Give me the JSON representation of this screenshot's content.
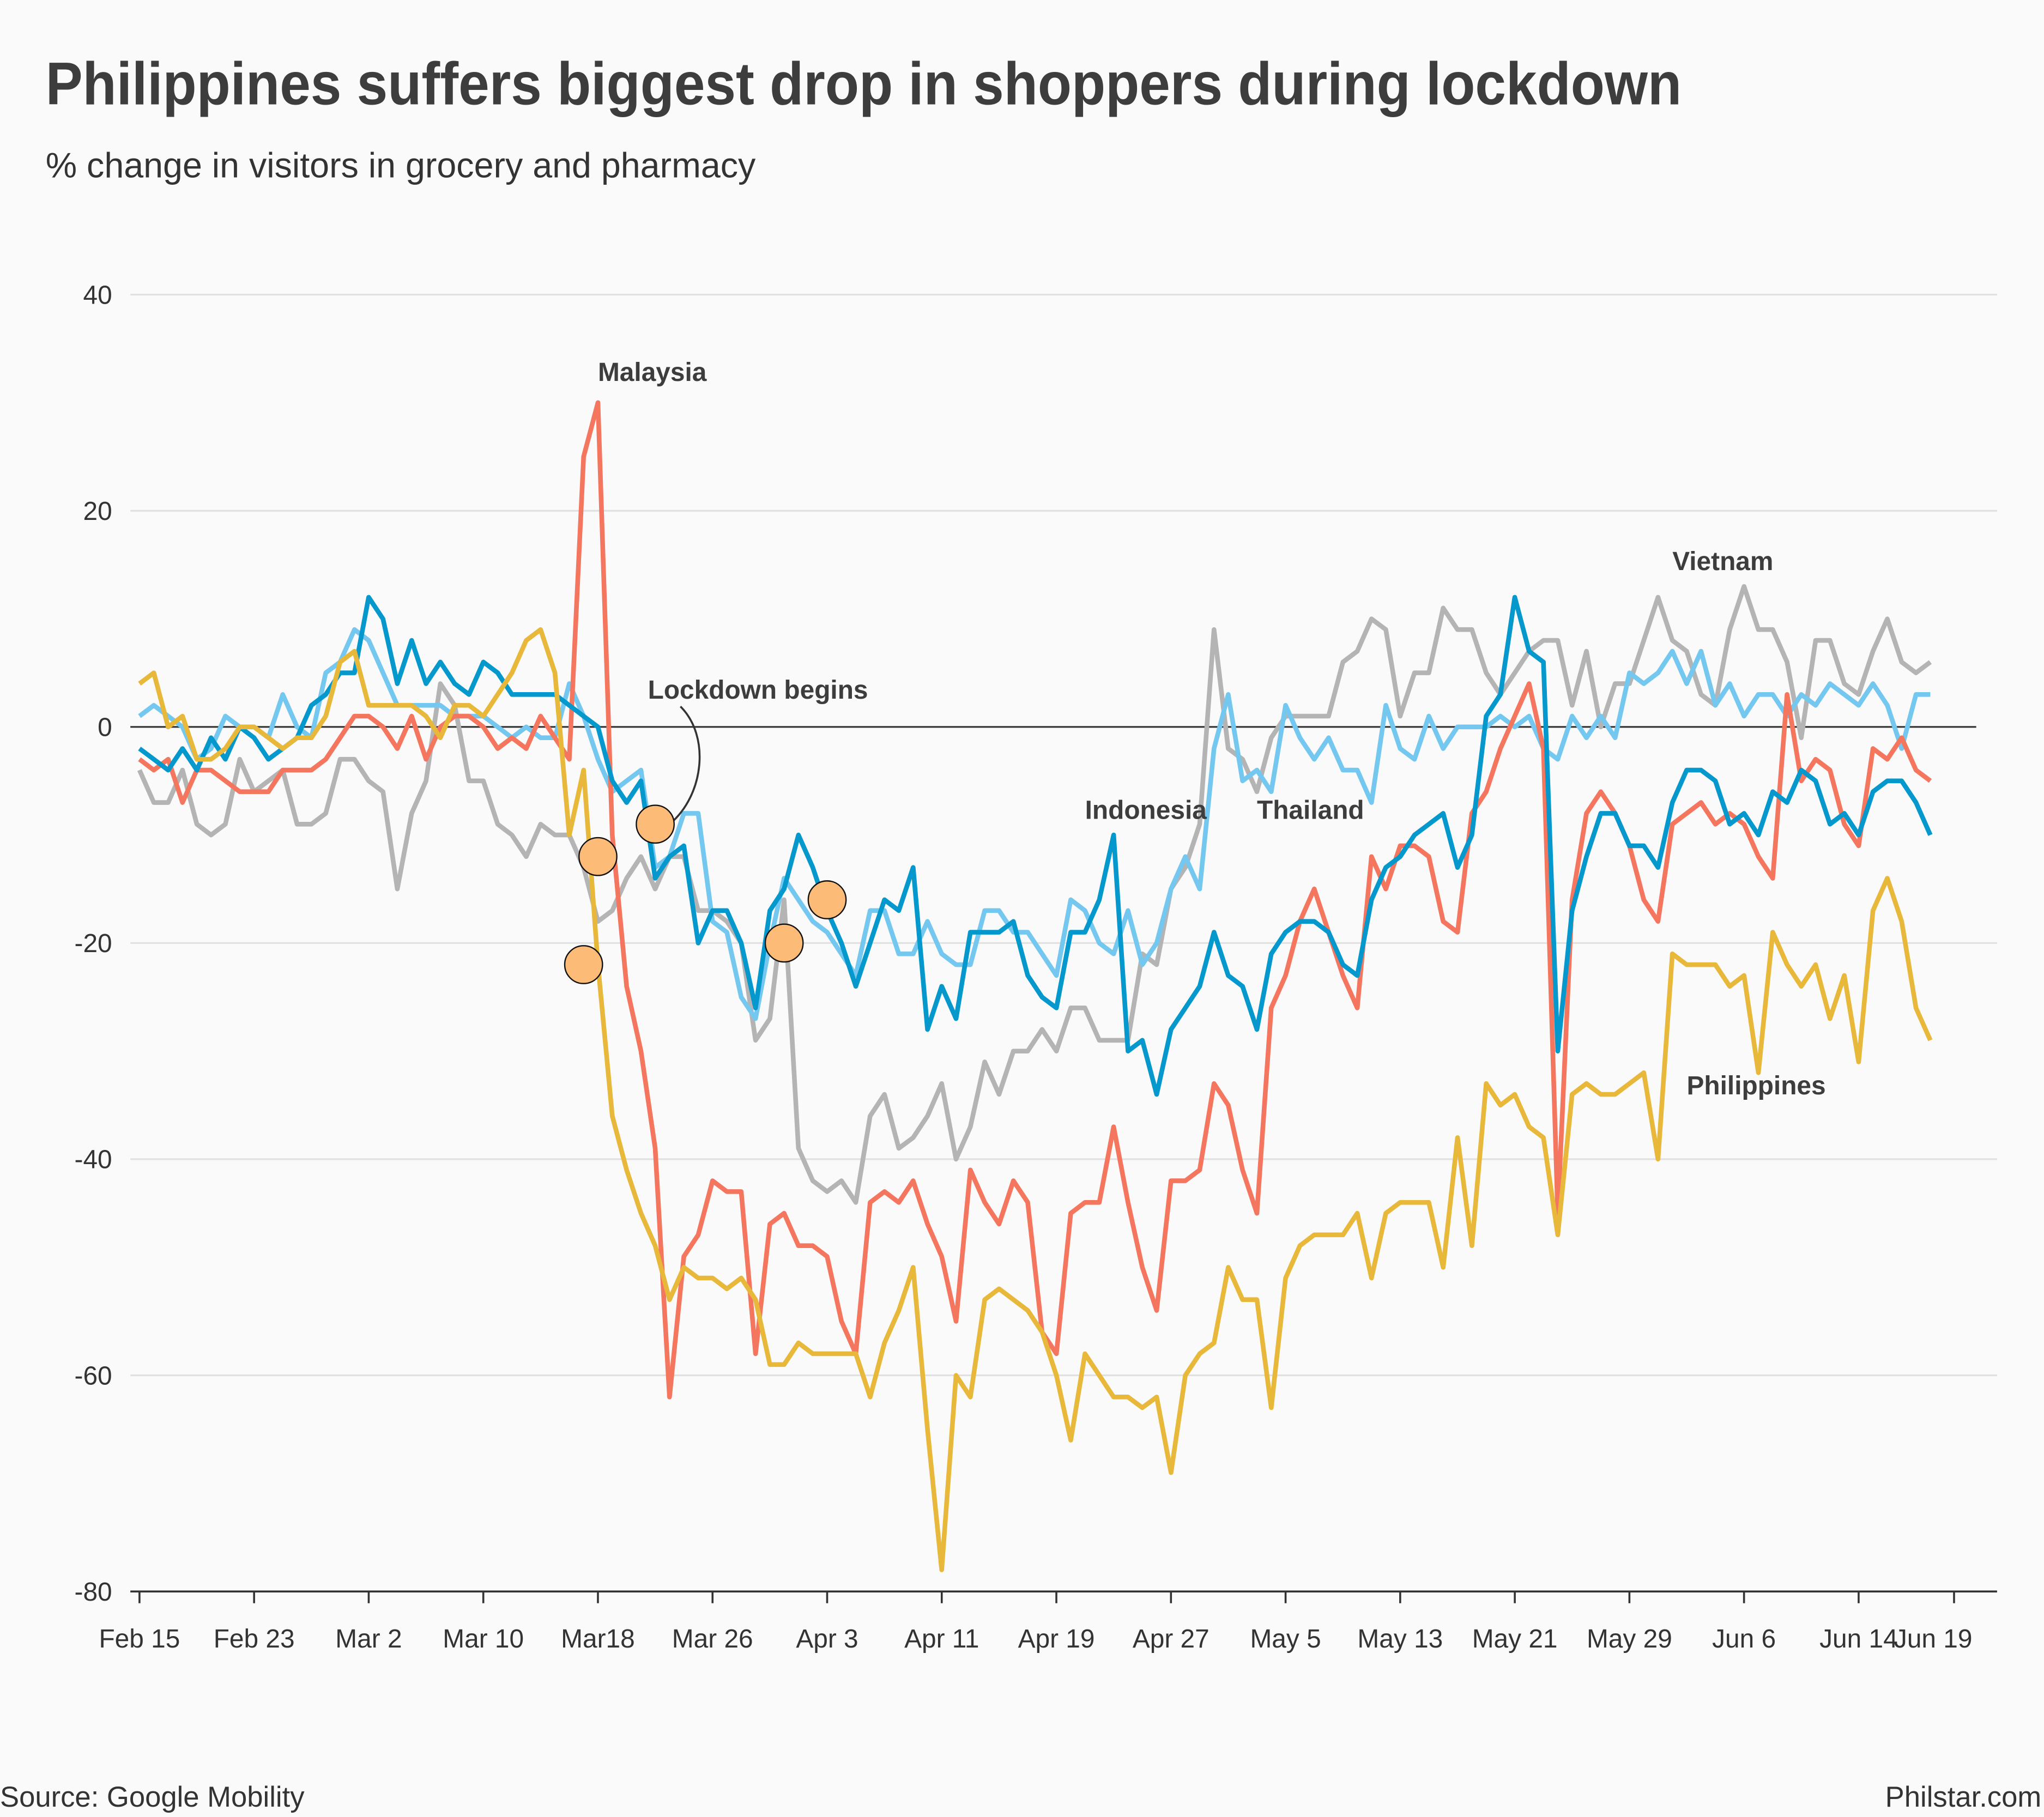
{
  "title": "Philippines suffers biggest drop in shoppers during lockdown",
  "subtitle": "% change in visitors in grocery and pharmacy",
  "source": "Source: Google Mobility",
  "credit": "Philstar.com",
  "chart_data": {
    "type": "line",
    "ylim": [
      -80,
      40
    ],
    "yticks": [
      40,
      20,
      0,
      -20,
      -40,
      -60,
      -80
    ],
    "grid": true,
    "xticks": [
      {
        "label": "Feb 15",
        "date": "Feb 15"
      },
      {
        "label": "Feb 23",
        "date": "Feb 23"
      },
      {
        "label": "Mar 2",
        "date": "Mar 2"
      },
      {
        "label": "Mar 10",
        "date": "Mar 10"
      },
      {
        "label": "Mar18",
        "date": "Mar 18"
      },
      {
        "label": "Mar 26",
        "date": "Mar 26"
      },
      {
        "label": "Apr 3",
        "date": "Apr 3"
      },
      {
        "label": "Apr 11",
        "date": "Apr 11"
      },
      {
        "label": "Apr 19",
        "date": "Apr 19"
      },
      {
        "label": "Apr 27",
        "date": "Apr 27"
      },
      {
        "label": "May 5",
        "date": "May 5"
      },
      {
        "label": "May 13",
        "date": "May 13"
      },
      {
        "label": "May 21",
        "date": "May 21"
      },
      {
        "label": "May 29",
        "date": "May 29"
      },
      {
        "label": "Jun 6",
        "date": "Jun 6"
      },
      {
        "label": "Jun 14",
        "date": "Jun 14"
      },
      {
        "label": "Jun 19",
        "date": "Jun 19"
      }
    ],
    "x": [
      "Feb 15",
      "Feb 16",
      "Feb 17",
      "Feb 18",
      "Feb 19",
      "Feb 20",
      "Feb 21",
      "Feb 22",
      "Feb 23",
      "Feb 24",
      "Feb 25",
      "Feb 26",
      "Feb 27",
      "Feb 28",
      "Feb 29",
      "Mar 1",
      "Mar 2",
      "Mar 3",
      "Mar 4",
      "Mar 5",
      "Mar 6",
      "Mar 7",
      "Mar 8",
      "Mar 9",
      "Mar 10",
      "Mar 11",
      "Mar 12",
      "Mar 13",
      "Mar 14",
      "Mar 15",
      "Mar 16",
      "Mar 17",
      "Mar 18",
      "Mar 19",
      "Mar 20",
      "Mar 21",
      "Mar 22",
      "Mar 23",
      "Mar 24",
      "Mar 25",
      "Mar 26",
      "Mar 27",
      "Mar 28",
      "Mar 29",
      "Mar 30",
      "Mar 31",
      "Apr 1",
      "Apr 2",
      "Apr 3",
      "Apr 4",
      "Apr 5",
      "Apr 6",
      "Apr 7",
      "Apr 8",
      "Apr 9",
      "Apr 10",
      "Apr 11",
      "Apr 12",
      "Apr 13",
      "Apr 14",
      "Apr 15",
      "Apr 16",
      "Apr 17",
      "Apr 18",
      "Apr 19",
      "Apr 20",
      "Apr 21",
      "Apr 22",
      "Apr 23",
      "Apr 24",
      "Apr 25",
      "Apr 26",
      "Apr 27",
      "Apr 28",
      "Apr 29",
      "Apr 30",
      "May 1",
      "May 2",
      "May 3",
      "May 4",
      "May 5",
      "May 6",
      "May 7",
      "May 8",
      "May 9",
      "May 10",
      "May 11",
      "May 12",
      "May 13",
      "May 14",
      "May 15",
      "May 16",
      "May 17",
      "May 18",
      "May 19",
      "May 20",
      "May 21",
      "May 22",
      "May 23",
      "May 24",
      "May 25",
      "May 26",
      "May 27",
      "May 28",
      "May 29",
      "May 30",
      "May 31",
      "Jun 1",
      "Jun 2",
      "Jun 3",
      "Jun 4",
      "Jun 5",
      "Jun 6",
      "Jun 7",
      "Jun 8",
      "Jun 9",
      "Jun 10",
      "Jun 11",
      "Jun 12",
      "Jun 13",
      "Jun 14",
      "Jun 15",
      "Jun 16",
      "Jun 17",
      "Jun 18",
      "Jun 19"
    ],
    "series": [
      {
        "name": "Vietnam",
        "color": "#b4b4b4",
        "label_date": "Jun 1",
        "label_value": 14.5,
        "values": [
          -4,
          -7,
          -7,
          -4,
          -9,
          -10,
          -9,
          -3,
          -6,
          -5,
          -4,
          -9,
          -9,
          -8,
          -3,
          -3,
          -5,
          -6,
          -15,
          -8,
          -5,
          4,
          2,
          -5,
          -5,
          -9,
          -10,
          -12,
          -9,
          -10,
          -10,
          -13,
          -18,
          -17,
          -14,
          -12,
          -15,
          -12,
          -12,
          -17,
          -17,
          -18,
          -20,
          -29,
          -27,
          -16,
          -39,
          -42,
          -43,
          -42,
          -44,
          -36,
          -34,
          -39,
          -38,
          -36,
          -33,
          -40,
          -37,
          -31,
          -34,
          -30,
          -30,
          -28,
          -30,
          -26,
          -26,
          -29,
          -29,
          -29,
          -21,
          -22,
          -15,
          -13,
          -9,
          9,
          -2,
          -3,
          -6,
          -1,
          1,
          1,
          1,
          1,
          6,
          7,
          10,
          9,
          1,
          5,
          5,
          11,
          9,
          9,
          5,
          3,
          5,
          7,
          8,
          8,
          2,
          7,
          0,
          4,
          4,
          8,
          12,
          8,
          7,
          3,
          2,
          9,
          13,
          9,
          9,
          6,
          -1,
          8,
          8,
          4,
          3,
          7,
          10,
          6,
          5,
          6
        ]
      },
      {
        "name": "Thailand",
        "color": "#74c8ef",
        "label_date": "May 3",
        "label_value": -8.5,
        "values": [
          1,
          2,
          1,
          0,
          -3,
          -2,
          1,
          0,
          0,
          -1,
          3,
          0,
          -1,
          5,
          6,
          9,
          8,
          5,
          2,
          2,
          2,
          2,
          1,
          1,
          1,
          0,
          -1,
          0,
          -1,
          -1,
          4,
          1,
          -3,
          -6,
          -5,
          -4,
          -13,
          -12,
          -8,
          -8,
          -18,
          -19,
          -25,
          -27,
          -20,
          -14,
          -16,
          -18,
          -19,
          -21,
          -23,
          -17,
          -17,
          -21,
          -21,
          -18,
          -21,
          -22,
          -22,
          -17,
          -17,
          -19,
          -19,
          -21,
          -23,
          -16,
          -17,
          -20,
          -21,
          -17,
          -22,
          -20,
          -15,
          -12,
          -15,
          -2,
          3,
          -5,
          -4,
          -6,
          2,
          -1,
          -3,
          -1,
          -4,
          -4,
          -7,
          2,
          -2,
          -3,
          1,
          -2,
          0,
          0,
          0,
          1,
          0,
          1,
          -2,
          -3,
          1,
          -1,
          1,
          -1,
          5,
          4,
          5,
          7,
          4,
          7,
          2,
          4,
          1,
          3,
          3,
          1,
          3,
          2,
          4,
          3,
          2,
          4,
          2,
          -2,
          3,
          3
        ]
      },
      {
        "name": "Malaysia",
        "color": "#f4765e",
        "label_date": "Mar 18",
        "label_value": 32,
        "values": [
          -3,
          -4,
          -3,
          -7,
          -4,
          -4,
          -5,
          -6,
          -6,
          -6,
          -4,
          -4,
          -4,
          -3,
          -1,
          1,
          1,
          0,
          -2,
          1,
          -3,
          0,
          1,
          1,
          0,
          -2,
          -1,
          -2,
          1,
          -1,
          -3,
          25,
          30,
          -10,
          -24,
          -30,
          -39,
          -62,
          -49,
          -47,
          -42,
          -43,
          -43,
          -58,
          -46,
          -45,
          -48,
          -48,
          -49,
          -55,
          -58,
          -44,
          -43,
          -44,
          -42,
          -46,
          -49,
          -55,
          -41,
          -44,
          -46,
          -42,
          -44,
          -56,
          -58,
          -45,
          -44,
          -44,
          -37,
          -44,
          -50,
          -54,
          -42,
          -42,
          -41,
          -33,
          -35,
          -41,
          -45,
          -26,
          -23,
          -18,
          -15,
          -19,
          -23,
          -26,
          -12,
          -15,
          -11,
          -11,
          -12,
          -18,
          -19,
          -8,
          -6,
          -2,
          1,
          4,
          -2,
          -45,
          -16,
          -8,
          -6,
          -8,
          -11,
          -16,
          -18,
          -9,
          -8,
          -7,
          -9,
          -8,
          -9,
          -12,
          -14,
          3,
          -5,
          -3,
          -4,
          -9,
          -11,
          -2,
          -3,
          -1,
          -4,
          -5
        ]
      },
      {
        "name": "Indonesia",
        "color": "#0598cc",
        "label_date": "Apr 21",
        "label_value": -8.5,
        "values": [
          -2,
          -3,
          -4,
          -2,
          -4,
          -1,
          -3,
          0,
          -1,
          -3,
          -2,
          -1,
          2,
          3,
          5,
          5,
          12,
          10,
          4,
          8,
          4,
          6,
          4,
          3,
          6,
          5,
          3,
          3,
          3,
          3,
          2,
          1,
          0,
          -5,
          -7,
          -5,
          -14,
          -12,
          -11,
          -20,
          -17,
          -17,
          -20,
          -26,
          -17,
          -15,
          -10,
          -13,
          -17,
          -20,
          -24,
          -20,
          -16,
          -17,
          -13,
          -28,
          -24,
          -27,
          -19,
          -19,
          -19,
          -18,
          -23,
          -25,
          -26,
          -19,
          -19,
          -16,
          -10,
          -30,
          -29,
          -34,
          -28,
          -26,
          -24,
          -19,
          -23,
          -24,
          -28,
          -21,
          -19,
          -18,
          -18,
          -19,
          -22,
          -23,
          -16,
          -13,
          -12,
          -10,
          -9,
          -8,
          -13,
          -10,
          1,
          3,
          12,
          7,
          6,
          -30,
          -17,
          -12,
          -8,
          -8,
          -11,
          -11,
          -13,
          -7,
          -4,
          -4,
          -5,
          -9,
          -8,
          -10,
          -6,
          -7,
          -4,
          -5,
          -9,
          -8,
          -10,
          -6,
          -5,
          -5,
          -7,
          -10
        ]
      },
      {
        "name": "Philippines",
        "color": "#e8b83b",
        "label_date": "Jun 2",
        "label_value": -34,
        "values": [
          4,
          5,
          0,
          1,
          -3,
          -3,
          -2,
          0,
          0,
          -1,
          -2,
          -1,
          -1,
          1,
          6,
          7,
          2,
          2,
          2,
          2,
          1,
          -1,
          2,
          2,
          1,
          3,
          5,
          8,
          9,
          5,
          -10,
          -4,
          -22,
          -36,
          -41,
          -45,
          -48,
          -53,
          -50,
          -51,
          -51,
          -52,
          -51,
          -53,
          -59,
          -59,
          -57,
          -58,
          -58,
          -58,
          -58,
          -62,
          -57,
          -54,
          -50,
          -65,
          -78,
          -60,
          -62,
          -53,
          -52,
          -53,
          -54,
          -56,
          -60,
          -66,
          -58,
          -60,
          -62,
          -62,
          -63,
          -62,
          -69,
          -60,
          -58,
          -57,
          -50,
          -53,
          -53,
          -63,
          -51,
          -48,
          -47,
          -47,
          -47,
          -45,
          -51,
          -45,
          -44,
          -44,
          -44,
          -50,
          -38,
          -48,
          -33,
          -35,
          -34,
          -37,
          -38,
          -47,
          -34,
          -33,
          -34,
          -34,
          -33,
          -32,
          -40,
          -21,
          -22,
          -22,
          -22,
          -24,
          -23,
          -32,
          -19,
          -22,
          -24,
          -22,
          -27,
          -23,
          -31,
          -17,
          -14,
          -18,
          -26,
          -29
        ]
      }
    ],
    "annotations": {
      "lockdown_label": "Lockdown begins",
      "lockdown_markers": [
        {
          "date": "Mar 17",
          "value": -22
        },
        {
          "date": "Mar 18",
          "value": -12
        },
        {
          "date": "Mar 22",
          "value": -9
        },
        {
          "date": "Mar 31",
          "value": -20
        },
        {
          "date": "Apr 3",
          "value": -16
        }
      ],
      "marker_color": "#fdbb78"
    }
  }
}
